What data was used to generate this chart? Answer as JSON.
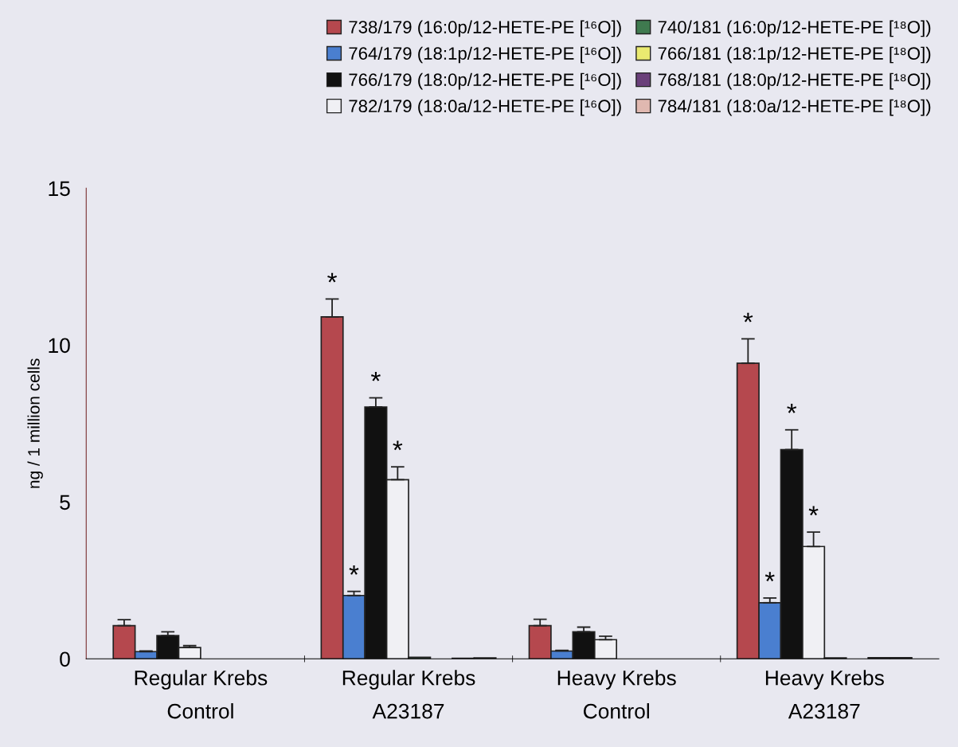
{
  "chart_data": {
    "type": "bar",
    "ylabel": "ng / 1 million cells",
    "categories": [
      "Regular Krebs\nControl",
      "Regular Krebs\nA23187",
      "Heavy Krebs\nControl",
      "Heavy Krebs\nA23187"
    ],
    "ylim": [
      0,
      15
    ],
    "yticks": [
      0,
      5,
      10,
      15
    ],
    "grid": false,
    "legend": "top",
    "series": [
      {
        "name": "738/179 (16:0p/12-HETE-PE [¹⁶O])",
        "color": "#b5484e",
        "values": [
          1.06,
          10.9,
          1.06,
          9.42
        ],
        "errors": [
          0.19,
          0.57,
          0.2,
          0.78
        ],
        "value_labels": [
          null,
          "*",
          null,
          "*"
        ]
      },
      {
        "name": "764/179 (18:1p/12-HETE-PE [¹⁶O])",
        "color": "#4a7fd0",
        "values": [
          0.23,
          2.02,
          0.25,
          1.79
        ],
        "errors": [
          0.02,
          0.13,
          0.02,
          0.15
        ],
        "value_labels": [
          null,
          "*",
          null,
          "*"
        ]
      },
      {
        "name": "766/179 (18:0p/12-HETE-PE [¹⁶O])",
        "color": "#111111",
        "values": [
          0.74,
          8.03,
          0.86,
          6.67
        ],
        "errors": [
          0.12,
          0.29,
          0.15,
          0.63
        ],
        "value_labels": [
          null,
          "*",
          null,
          "*"
        ]
      },
      {
        "name": "782/179 (18:0a/12-HETE-PE [¹⁶O])",
        "color": "#f0f0f4",
        "values": [
          0.36,
          5.71,
          0.61,
          3.58
        ],
        "errors": [
          0.06,
          0.41,
          0.11,
          0.46
        ],
        "value_labels": [
          null,
          "*",
          null,
          "*"
        ]
      },
      {
        "name": "740/181 (16:0p/12-HETE-PE [¹⁸O])",
        "color": "#3f7a4f",
        "values": [
          null,
          0.05,
          null,
          0.03
        ]
      },
      {
        "name": "766/181 (18:1p/12-HETE-PE [¹⁸O])",
        "color": "#eaea70",
        "values": [
          null,
          null,
          null,
          null
        ]
      },
      {
        "name": "768/181 (18:0p/12-HETE-PE [¹⁸O])",
        "color": "#6a3f7a",
        "values": [
          null,
          0.02,
          null,
          0.04
        ]
      },
      {
        "name": "784/181 (18:0a/12-HETE-PE [¹⁸O])",
        "color": "#e0b8b0",
        "values": [
          null,
          0.03,
          null,
          0.04
        ]
      }
    ]
  }
}
